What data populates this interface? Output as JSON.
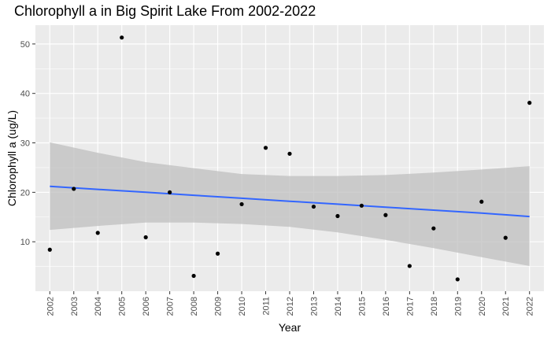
{
  "chart_data": {
    "type": "scatter",
    "title": "Chlorophyll a in Big Spirit Lake From 2002-2022",
    "xlabel": "Year",
    "ylabel": "Chlorophyll a (ug/L)",
    "x": [
      2002,
      2003,
      2004,
      2005,
      2006,
      2007,
      2008,
      2009,
      2010,
      2011,
      2012,
      2013,
      2014,
      2015,
      2016,
      2017,
      2018,
      2019,
      2020,
      2021,
      2022
    ],
    "values": [
      8.4,
      20.7,
      11.8,
      51.3,
      10.9,
      20.0,
      3.1,
      7.6,
      17.6,
      29.0,
      27.8,
      17.1,
      15.2,
      17.3,
      15.4,
      5.1,
      12.7,
      2.4,
      18.1,
      10.8,
      38.1
    ],
    "xticks": [
      "2002",
      "2003",
      "2004",
      "2005",
      "2006",
      "2007",
      "2008",
      "2009",
      "2010",
      "2011",
      "2012",
      "2013",
      "2014",
      "2015",
      "2016",
      "2017",
      "2018",
      "2019",
      "2020",
      "2021",
      "2022"
    ],
    "yticks": [
      10,
      20,
      30,
      40,
      50
    ],
    "ylim": [
      0.0,
      53.8
    ],
    "xlim": [
      2001.4,
      2022.6
    ],
    "grid": true,
    "trend": {
      "x": [
        2002,
        2004,
        2006,
        2008,
        2010,
        2012,
        2014,
        2016,
        2018,
        2020,
        2022
      ],
      "fit": [
        21.2,
        20.6,
        20.0,
        19.4,
        18.8,
        18.2,
        17.6,
        17.0,
        16.4,
        15.8,
        15.1
      ],
      "lower": [
        12.4,
        13.2,
        13.9,
        13.9,
        13.6,
        13.0,
        11.9,
        10.4,
        8.7,
        6.9,
        5.1
      ],
      "upper": [
        30.1,
        28.0,
        26.1,
        24.9,
        23.7,
        23.3,
        23.3,
        23.5,
        24.0,
        24.6,
        25.3
      ],
      "color": "#3366ff",
      "band_color": "#bfbfbf"
    },
    "point_color": "#000000",
    "panel_color": "#ebebeb",
    "gridline_color": "#ffffff"
  }
}
